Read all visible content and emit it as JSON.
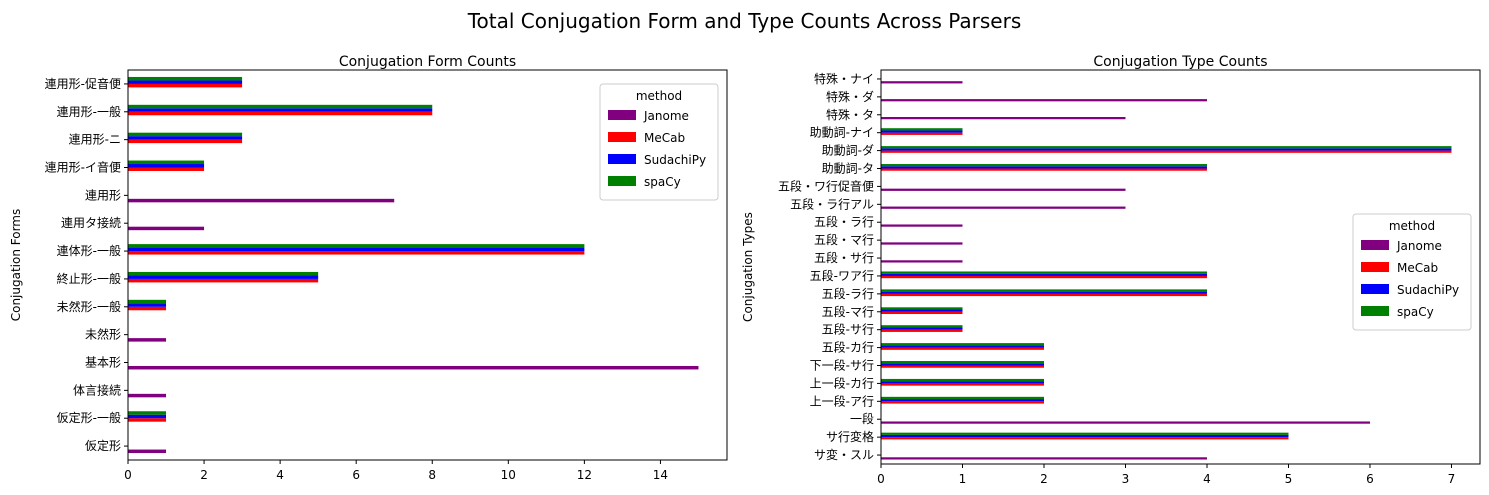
{
  "figure": {
    "suptitle": "Total Conjugation Form and Type Counts Across Parsers"
  },
  "chart_data": [
    {
      "type": "bar",
      "orientation": "horizontal",
      "title": "Conjugation Form Counts",
      "xlabel": "",
      "ylabel": "Conjugation Forms",
      "xlim": [
        0,
        15.75
      ],
      "xticks": [
        0,
        2,
        4,
        6,
        8,
        10,
        12,
        14
      ],
      "grid": false,
      "legend": {
        "title": "method",
        "placement": "top-right"
      },
      "categories": [
        "連用形-促音便",
        "連用形-一般",
        "連用形-ニ",
        "連用形-イ音便",
        "連用形",
        "連用タ接続",
        "連体形-一般",
        "終止形-一般",
        "未然形-一般",
        "未然形",
        "基本形",
        "体言接続",
        "仮定形-一般",
        "仮定形"
      ],
      "series": [
        {
          "name": "Janome",
          "color": "#800080",
          "values": [
            0,
            0,
            0,
            0,
            7,
            2,
            0,
            0,
            0,
            1,
            15,
            1,
            0,
            1
          ]
        },
        {
          "name": "MeCab",
          "color": "#ff0000",
          "values": [
            3,
            8,
            3,
            2,
            0,
            0,
            12,
            5,
            1,
            0,
            0,
            0,
            1,
            0
          ]
        },
        {
          "name": "SudachiPy",
          "color": "#0000ff",
          "values": [
            3,
            8,
            3,
            2,
            0,
            0,
            12,
            5,
            1,
            0,
            0,
            0,
            1,
            0
          ]
        },
        {
          "name": "spaCy",
          "color": "#008000",
          "values": [
            3,
            8,
            3,
            2,
            0,
            0,
            12,
            5,
            1,
            0,
            0,
            0,
            1,
            0
          ]
        }
      ]
    },
    {
      "type": "bar",
      "orientation": "horizontal",
      "title": "Conjugation Type Counts",
      "xlabel": "",
      "ylabel": "Conjugation Types",
      "xlim": [
        0,
        7.35
      ],
      "xticks": [
        0,
        1,
        2,
        3,
        4,
        5,
        6,
        7
      ],
      "grid": false,
      "legend": {
        "title": "method",
        "placement": "center-right"
      },
      "categories": [
        "特殊・ナイ",
        "特殊・ダ",
        "特殊・タ",
        "助動詞-ナイ",
        "助動詞-ダ",
        "助動詞-タ",
        "五段・ワ行促音便",
        "五段・ラ行アル",
        "五段・ラ行",
        "五段・マ行",
        "五段・サ行",
        "五段-ワア行",
        "五段-ラ行",
        "五段-マ行",
        "五段-サ行",
        "五段-カ行",
        "下一段-サ行",
        "上一段-カ行",
        "上一段-ア行",
        "一段",
        "サ行変格",
        "サ変・スル"
      ],
      "series": [
        {
          "name": "Janome",
          "color": "#800080",
          "values": [
            1,
            4,
            3,
            0,
            0,
            0,
            3,
            3,
            1,
            1,
            1,
            0,
            0,
            0,
            0,
            0,
            0,
            0,
            0,
            6,
            0,
            4
          ]
        },
        {
          "name": "MeCab",
          "color": "#ff0000",
          "values": [
            0,
            0,
            0,
            1,
            7,
            4,
            0,
            0,
            0,
            0,
            0,
            4,
            4,
            1,
            1,
            2,
            2,
            2,
            2,
            0,
            5,
            0
          ]
        },
        {
          "name": "SudachiPy",
          "color": "#0000ff",
          "values": [
            0,
            0,
            0,
            1,
            7,
            4,
            0,
            0,
            0,
            0,
            0,
            4,
            4,
            1,
            1,
            2,
            2,
            2,
            2,
            0,
            5,
            0
          ]
        },
        {
          "name": "spaCy",
          "color": "#008000",
          "values": [
            0,
            0,
            0,
            1,
            7,
            4,
            0,
            0,
            0,
            0,
            0,
            4,
            4,
            1,
            1,
            2,
            2,
            2,
            2,
            0,
            5,
            0
          ]
        }
      ]
    }
  ]
}
